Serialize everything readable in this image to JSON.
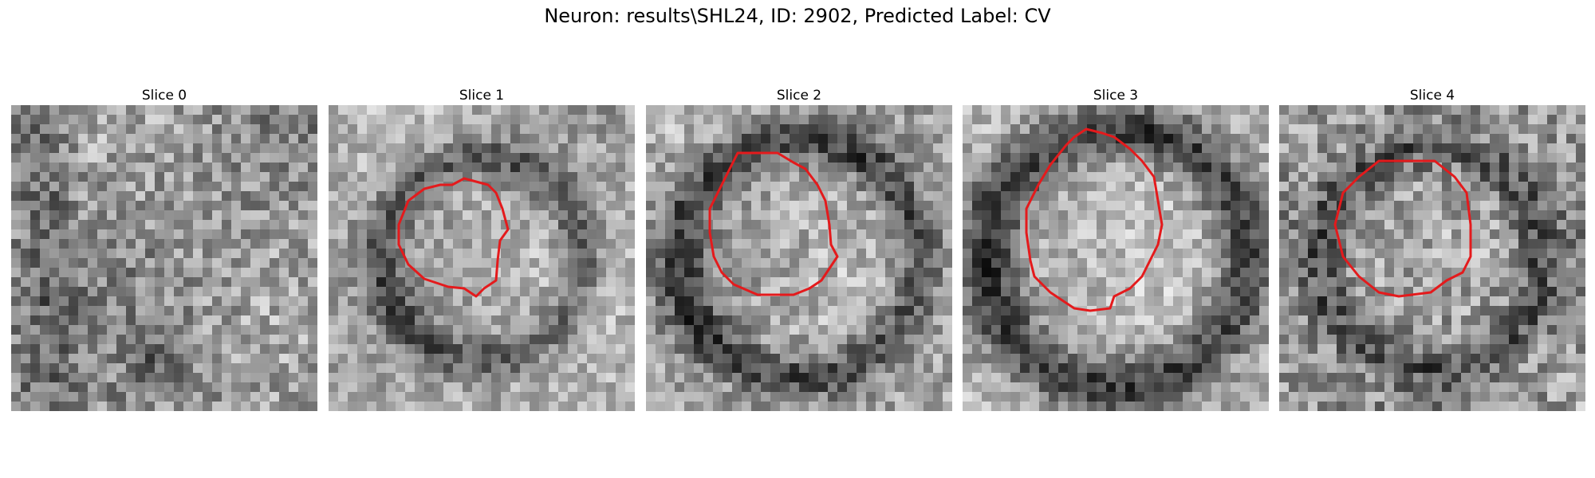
{
  "figure": {
    "title": "Neuron: results\\SHL24, ID: 2902, Predicted Label: CV",
    "contour_color": "#e41a1c"
  },
  "panels": [
    {
      "title": "Slice 0"
    },
    {
      "title": "Slice 1"
    },
    {
      "title": "Slice 2"
    },
    {
      "title": "Slice 3"
    },
    {
      "title": "Slice 4"
    }
  ]
}
